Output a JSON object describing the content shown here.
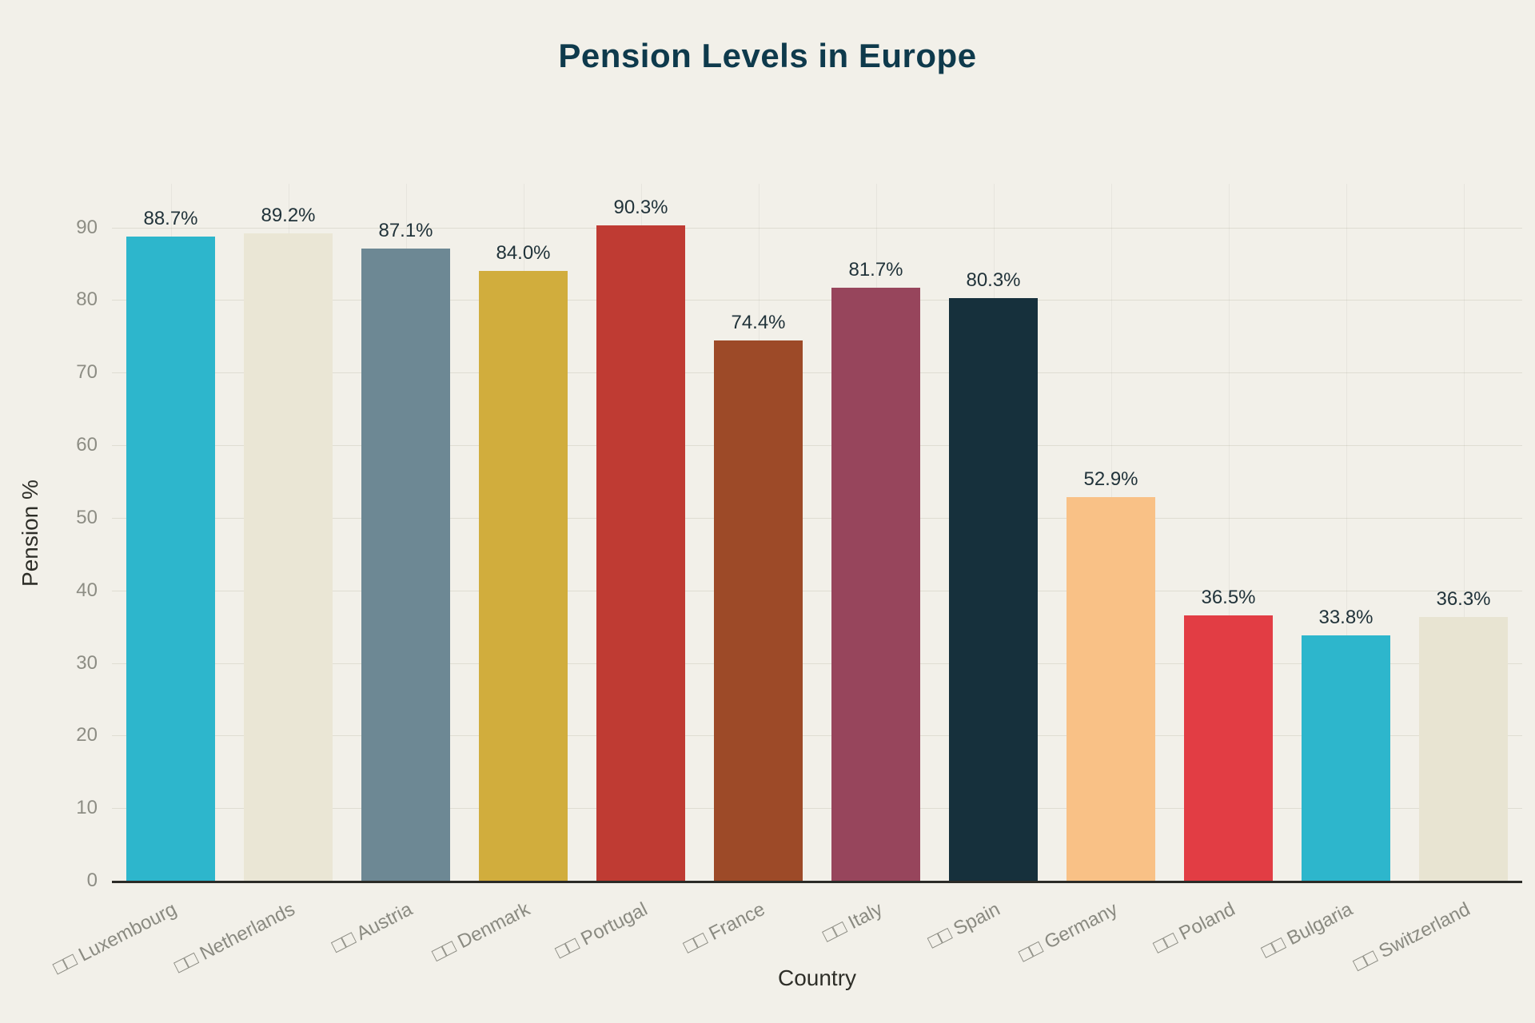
{
  "page": {
    "background": "#f2f0e9"
  },
  "chart_data": {
    "type": "bar",
    "title": "Pension Levels in Europe",
    "xlabel": "Country",
    "ylabel": "Pension %",
    "ylim": [
      0,
      96
    ],
    "yticks": [
      0,
      10,
      20,
      30,
      40,
      50,
      60,
      70,
      80,
      90
    ],
    "grid": true,
    "legend": false,
    "categories": [
      "□□ Luxembourg",
      "□□ Netherlands",
      "□□ Austria",
      "□□ Denmark",
      "□□ Portugal",
      "□□ France",
      "□□ Italy",
      "□□ Spain",
      "□□ Germany",
      "□□ Poland",
      "□□ Bulgaria",
      "□□ Switzerland"
    ],
    "values": [
      88.7,
      89.2,
      87.1,
      84.0,
      90.3,
      74.4,
      81.7,
      80.3,
      52.9,
      36.5,
      33.8,
      36.3
    ],
    "value_labels": [
      "88.7%",
      "89.2%",
      "87.1%",
      "84.0%",
      "90.3%",
      "74.4%",
      "81.7%",
      "80.3%",
      "52.9%",
      "36.5%",
      "33.8%",
      "36.3%"
    ],
    "bar_colors": [
      "#2db6cc",
      "#eae6d5",
      "#6d8894",
      "#d1ad3d",
      "#bf3b33",
      "#9d4a28",
      "#97455c",
      "#16303c",
      "#f9c186",
      "#e23d44",
      "#2db6cc",
      "#e8e4d2"
    ]
  },
  "colors": {
    "title": "#0e3a4c",
    "axis_label": "#2e2e28",
    "tick_label": "#8d8d84",
    "value_label": "#21333a",
    "gridline": "#dfddd2",
    "baseline": "#2b2b27"
  }
}
